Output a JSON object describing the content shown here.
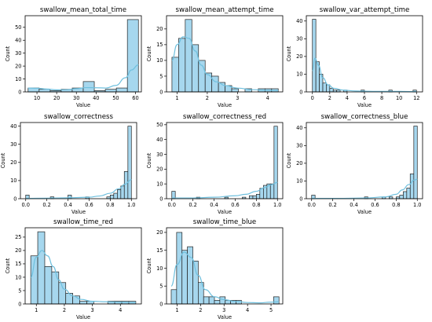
{
  "chart_data": [
    {
      "type": "histogram",
      "title": "swallow_mean_total_time",
      "xlabel": "Value",
      "ylabel": "Count",
      "xlim": [
        4,
        63
      ],
      "ylim": [
        0,
        59
      ],
      "xticks": [
        10,
        20,
        30,
        40,
        50,
        60
      ],
      "yticks": [
        0,
        10,
        20,
        30,
        40,
        50
      ],
      "bins": [
        {
          "x0": 5.5,
          "x1": 11.1,
          "count": 3
        },
        {
          "x0": 11.1,
          "x1": 16.7,
          "count": 2
        },
        {
          "x0": 16.7,
          "x1": 22.3,
          "count": 1
        },
        {
          "x0": 22.3,
          "x1": 27.9,
          "count": 2
        },
        {
          "x0": 27.9,
          "x1": 33.5,
          "count": 3
        },
        {
          "x0": 33.5,
          "x1": 39.1,
          "count": 8
        },
        {
          "x0": 39.1,
          "x1": 44.7,
          "count": 1
        },
        {
          "x0": 44.7,
          "x1": 50.3,
          "count": 2
        },
        {
          "x0": 50.3,
          "x1": 55.9,
          "count": 3
        },
        {
          "x0": 55.9,
          "x1": 61.5,
          "count": 56
        }
      ],
      "kde": [
        [
          5.5,
          3
        ],
        [
          10,
          2.8
        ],
        [
          15,
          2.2
        ],
        [
          20,
          1.6
        ],
        [
          25,
          1.7
        ],
        [
          30,
          2.5
        ],
        [
          35,
          3.3
        ],
        [
          40,
          3.2
        ],
        [
          45,
          3
        ],
        [
          50,
          5
        ],
        [
          55,
          11
        ],
        [
          58,
          17
        ],
        [
          61.5,
          21
        ]
      ]
    },
    {
      "type": "histogram",
      "title": "swallow_mean_attempt_time",
      "xlabel": "Value",
      "ylabel": "Count",
      "xlim": [
        0.65,
        4.5
      ],
      "ylim": [
        0,
        24.2
      ],
      "xticks": [
        1,
        2,
        3,
        4
      ],
      "yticks": [
        0,
        5,
        10,
        15,
        20
      ],
      "bins": [
        {
          "x0": 0.83,
          "x1": 1.05,
          "count": 11
        },
        {
          "x0": 1.05,
          "x1": 1.27,
          "count": 17
        },
        {
          "x0": 1.27,
          "x1": 1.49,
          "count": 23
        },
        {
          "x0": 1.49,
          "x1": 1.71,
          "count": 15
        },
        {
          "x0": 1.71,
          "x1": 1.93,
          "count": 10
        },
        {
          "x0": 1.93,
          "x1": 2.15,
          "count": 6
        },
        {
          "x0": 2.15,
          "x1": 2.37,
          "count": 5
        },
        {
          "x0": 2.37,
          "x1": 2.59,
          "count": 3
        },
        {
          "x0": 2.59,
          "x1": 2.81,
          "count": 2
        },
        {
          "x0": 2.81,
          "x1": 3.03,
          "count": 1
        },
        {
          "x0": 3.03,
          "x1": 3.25,
          "count": 0
        },
        {
          "x0": 3.25,
          "x1": 3.47,
          "count": 1
        },
        {
          "x0": 3.47,
          "x1": 3.69,
          "count": 0
        },
        {
          "x0": 3.69,
          "x1": 3.91,
          "count": 1
        },
        {
          "x0": 3.91,
          "x1": 4.13,
          "count": 1
        },
        {
          "x0": 4.13,
          "x1": 4.35,
          "count": 1
        }
      ],
      "kde": [
        [
          0.83,
          10
        ],
        [
          1.0,
          15
        ],
        [
          1.2,
          17.5
        ],
        [
          1.4,
          17
        ],
        [
          1.6,
          13
        ],
        [
          1.8,
          8.5
        ],
        [
          2.0,
          5.5
        ],
        [
          2.3,
          3.2
        ],
        [
          2.6,
          2
        ],
        [
          3.0,
          1.2
        ],
        [
          3.5,
          0.7
        ],
        [
          4.0,
          0.5
        ],
        [
          4.35,
          0.4
        ]
      ]
    },
    {
      "type": "histogram",
      "title": "swallow_var_attempt_time",
      "xlabel": "Value",
      "ylabel": "Count",
      "xlim": [
        -0.7,
        12.7
      ],
      "ylim": [
        0,
        43
      ],
      "xticks": [
        0,
        2,
        4,
        6,
        8,
        10,
        12
      ],
      "yticks": [
        0,
        10,
        20,
        30,
        40
      ],
      "bins": [
        {
          "x0": 0.0,
          "x1": 0.4,
          "count": 41
        },
        {
          "x0": 0.4,
          "x1": 0.8,
          "count": 17
        },
        {
          "x0": 0.8,
          "x1": 1.2,
          "count": 10
        },
        {
          "x0": 1.2,
          "x1": 1.6,
          "count": 5
        },
        {
          "x0": 1.6,
          "x1": 2.0,
          "count": 4
        },
        {
          "x0": 2.0,
          "x1": 2.4,
          "count": 2
        },
        {
          "x0": 2.4,
          "x1": 2.8,
          "count": 1
        },
        {
          "x0": 2.8,
          "x1": 3.2,
          "count": 1
        },
        {
          "x0": 3.2,
          "x1": 3.6,
          "count": 0
        },
        {
          "x0": 3.6,
          "x1": 4.0,
          "count": 1
        },
        {
          "x0": 5.6,
          "x1": 6.0,
          "count": 1
        },
        {
          "x0": 8.8,
          "x1": 9.2,
          "count": 1
        },
        {
          "x0": 11.6,
          "x1": 12.0,
          "count": 1
        }
      ],
      "kde": [
        [
          0,
          12
        ],
        [
          0.3,
          19
        ],
        [
          0.7,
          15
        ],
        [
          1.2,
          8
        ],
        [
          1.8,
          4
        ],
        [
          2.5,
          2
        ],
        [
          3.5,
          1
        ],
        [
          5,
          0.5
        ],
        [
          7,
          0.3
        ],
        [
          9,
          0.3
        ],
        [
          12,
          0.2
        ]
      ]
    },
    {
      "type": "histogram",
      "title": "swallow_correctness",
      "xlabel": "Value",
      "ylabel": "Count",
      "xlim": [
        -0.05,
        1.05
      ],
      "ylim": [
        0,
        42
      ],
      "xticks": [
        0.0,
        0.2,
        0.4,
        0.6,
        0.8,
        1.0
      ],
      "yticks": [
        0,
        10,
        20,
        30,
        40
      ],
      "bins": [
        {
          "x0": 0.0,
          "x1": 0.033,
          "count": 2
        },
        {
          "x0": 0.233,
          "x1": 0.267,
          "count": 1
        },
        {
          "x0": 0.4,
          "x1": 0.433,
          "count": 2
        },
        {
          "x0": 0.567,
          "x1": 0.6,
          "count": 1
        },
        {
          "x0": 0.767,
          "x1": 0.8,
          "count": 1
        },
        {
          "x0": 0.8,
          "x1": 0.833,
          "count": 2
        },
        {
          "x0": 0.833,
          "x1": 0.867,
          "count": 3
        },
        {
          "x0": 0.867,
          "x1": 0.9,
          "count": 5
        },
        {
          "x0": 0.9,
          "x1": 0.933,
          "count": 7
        },
        {
          "x0": 0.933,
          "x1": 0.967,
          "count": 15
        },
        {
          "x0": 0.967,
          "x1": 1.0,
          "count": 40
        }
      ],
      "kde": [
        [
          0,
          0.2
        ],
        [
          0.2,
          0.3
        ],
        [
          0.4,
          0.5
        ],
        [
          0.6,
          0.8
        ],
        [
          0.7,
          1.5
        ],
        [
          0.8,
          3
        ],
        [
          0.88,
          5.5
        ],
        [
          0.94,
          8
        ],
        [
          1.0,
          10.5
        ]
      ]
    },
    {
      "type": "histogram",
      "title": "swallow_correctness_red",
      "xlabel": "Value",
      "ylabel": "Count",
      "xlim": [
        -0.05,
        1.05
      ],
      "ylim": [
        0,
        51.5
      ],
      "xticks": [
        0.0,
        0.2,
        0.4,
        0.6,
        0.8,
        1.0
      ],
      "yticks": [
        0,
        10,
        20,
        30,
        40,
        50
      ],
      "bins": [
        {
          "x0": 0.0,
          "x1": 0.033,
          "count": 5
        },
        {
          "x0": 0.233,
          "x1": 0.267,
          "count": 1
        },
        {
          "x0": 0.5,
          "x1": 0.533,
          "count": 1
        },
        {
          "x0": 0.667,
          "x1": 0.7,
          "count": 1
        },
        {
          "x0": 0.733,
          "x1": 0.767,
          "count": 2
        },
        {
          "x0": 0.767,
          "x1": 0.8,
          "count": 2
        },
        {
          "x0": 0.8,
          "x1": 0.833,
          "count": 3
        },
        {
          "x0": 0.833,
          "x1": 0.867,
          "count": 7
        },
        {
          "x0": 0.867,
          "x1": 0.9,
          "count": 9
        },
        {
          "x0": 0.9,
          "x1": 0.933,
          "count": 10
        },
        {
          "x0": 0.933,
          "x1": 0.967,
          "count": 10
        },
        {
          "x0": 0.967,
          "x1": 1.0,
          "count": 49
        }
      ],
      "kde": [
        [
          0,
          0.5
        ],
        [
          0.2,
          0.5
        ],
        [
          0.4,
          1
        ],
        [
          0.6,
          2
        ],
        [
          0.7,
          3
        ],
        [
          0.8,
          5
        ],
        [
          0.88,
          7.5
        ],
        [
          0.94,
          9.5
        ],
        [
          1.0,
          11
        ]
      ]
    },
    {
      "type": "histogram",
      "title": "swallow_correctness_blue",
      "xlabel": "Value",
      "ylabel": "Count",
      "xlim": [
        -0.05,
        1.05
      ],
      "ylim": [
        0,
        43
      ],
      "xticks": [
        0.0,
        0.2,
        0.4,
        0.6,
        0.8,
        1.0
      ],
      "yticks": [
        0,
        10,
        20,
        30,
        40
      ],
      "bins": [
        {
          "x0": 0.0,
          "x1": 0.033,
          "count": 2
        },
        {
          "x0": 0.5,
          "x1": 0.533,
          "count": 1
        },
        {
          "x0": 0.667,
          "x1": 0.7,
          "count": 1
        },
        {
          "x0": 0.733,
          "x1": 0.767,
          "count": 1
        },
        {
          "x0": 0.8,
          "x1": 0.833,
          "count": 1
        },
        {
          "x0": 0.833,
          "x1": 0.867,
          "count": 2
        },
        {
          "x0": 0.867,
          "x1": 0.9,
          "count": 4
        },
        {
          "x0": 0.9,
          "x1": 0.933,
          "count": 6
        },
        {
          "x0": 0.933,
          "x1": 0.967,
          "count": 14
        },
        {
          "x0": 0.967,
          "x1": 1.0,
          "count": 41
        }
      ],
      "kde": [
        [
          0,
          0.2
        ],
        [
          0.3,
          0.2
        ],
        [
          0.5,
          0.4
        ],
        [
          0.7,
          1
        ],
        [
          0.8,
          2.5
        ],
        [
          0.86,
          5
        ],
        [
          0.92,
          8
        ],
        [
          0.97,
          10.5
        ],
        [
          1.0,
          11
        ]
      ]
    },
    {
      "type": "histogram",
      "title": "swallow_time_red",
      "xlabel": "Value",
      "ylabel": "Count",
      "xlim": [
        0.6,
        4.75
      ],
      "ylim": [
        0,
        28.5
      ],
      "xticks": [
        1,
        2,
        3,
        4
      ],
      "yticks": [
        0,
        5,
        10,
        15,
        20,
        25
      ],
      "bins": [
        {
          "x0": 0.8,
          "x1": 1.05,
          "count": 18
        },
        {
          "x0": 1.05,
          "x1": 1.3,
          "count": 27
        },
        {
          "x0": 1.3,
          "x1": 1.55,
          "count": 14
        },
        {
          "x0": 1.55,
          "x1": 1.8,
          "count": 12
        },
        {
          "x0": 1.8,
          "x1": 2.05,
          "count": 8
        },
        {
          "x0": 2.05,
          "x1": 2.3,
          "count": 4
        },
        {
          "x0": 2.3,
          "x1": 2.55,
          "count": 3
        },
        {
          "x0": 2.55,
          "x1": 2.8,
          "count": 1
        },
        {
          "x0": 2.8,
          "x1": 3.05,
          "count": 1
        },
        {
          "x0": 3.05,
          "x1": 3.3,
          "count": 0
        },
        {
          "x0": 3.3,
          "x1": 3.55,
          "count": 0
        },
        {
          "x0": 3.55,
          "x1": 3.8,
          "count": 1
        },
        {
          "x0": 3.8,
          "x1": 4.05,
          "count": 1
        },
        {
          "x0": 4.05,
          "x1": 4.3,
          "count": 1
        },
        {
          "x0": 4.3,
          "x1": 4.55,
          "count": 1
        }
      ],
      "kde": [
        [
          0.8,
          10
        ],
        [
          1.0,
          17.5
        ],
        [
          1.2,
          20
        ],
        [
          1.4,
          18
        ],
        [
          1.6,
          14
        ],
        [
          1.8,
          9
        ],
        [
          2.0,
          5.5
        ],
        [
          2.3,
          3
        ],
        [
          2.6,
          1.7
        ],
        [
          3.0,
          1
        ],
        [
          3.5,
          0.8
        ],
        [
          4.0,
          0.7
        ],
        [
          4.55,
          0.5
        ]
      ]
    },
    {
      "type": "histogram",
      "title": "swallow_time_blue",
      "xlabel": "Value",
      "ylabel": "Count",
      "xlim": [
        0.55,
        5.5
      ],
      "ylim": [
        0,
        21.3
      ],
      "xticks": [
        1,
        2,
        3,
        4,
        5
      ],
      "yticks": [
        0,
        5,
        10,
        15,
        20
      ],
      "bins": [
        {
          "x0": 0.75,
          "x1": 0.98,
          "count": 4
        },
        {
          "x0": 0.98,
          "x1": 1.21,
          "count": 20
        },
        {
          "x0": 1.21,
          "x1": 1.44,
          "count": 15
        },
        {
          "x0": 1.44,
          "x1": 1.67,
          "count": 16
        },
        {
          "x0": 1.67,
          "x1": 1.9,
          "count": 12
        },
        {
          "x0": 1.9,
          "x1": 2.13,
          "count": 6
        },
        {
          "x0": 2.13,
          "x1": 2.36,
          "count": 2
        },
        {
          "x0": 2.36,
          "x1": 2.59,
          "count": 2
        },
        {
          "x0": 2.59,
          "x1": 2.82,
          "count": 1
        },
        {
          "x0": 2.82,
          "x1": 3.05,
          "count": 2
        },
        {
          "x0": 3.05,
          "x1": 3.28,
          "count": 1
        },
        {
          "x0": 3.28,
          "x1": 3.51,
          "count": 1
        },
        {
          "x0": 3.51,
          "x1": 3.74,
          "count": 1
        },
        {
          "x0": 5.11,
          "x1": 5.34,
          "count": 2
        }
      ],
      "kde": [
        [
          0.75,
          5
        ],
        [
          1.0,
          11
        ],
        [
          1.3,
          14.5
        ],
        [
          1.6,
          13
        ],
        [
          1.9,
          8
        ],
        [
          2.2,
          4
        ],
        [
          2.6,
          2
        ],
        [
          3.0,
          1.2
        ],
        [
          3.5,
          0.7
        ],
        [
          4.0,
          0.4
        ],
        [
          4.5,
          0.3
        ],
        [
          5.0,
          0.5
        ],
        [
          5.34,
          0.6
        ]
      ]
    }
  ]
}
